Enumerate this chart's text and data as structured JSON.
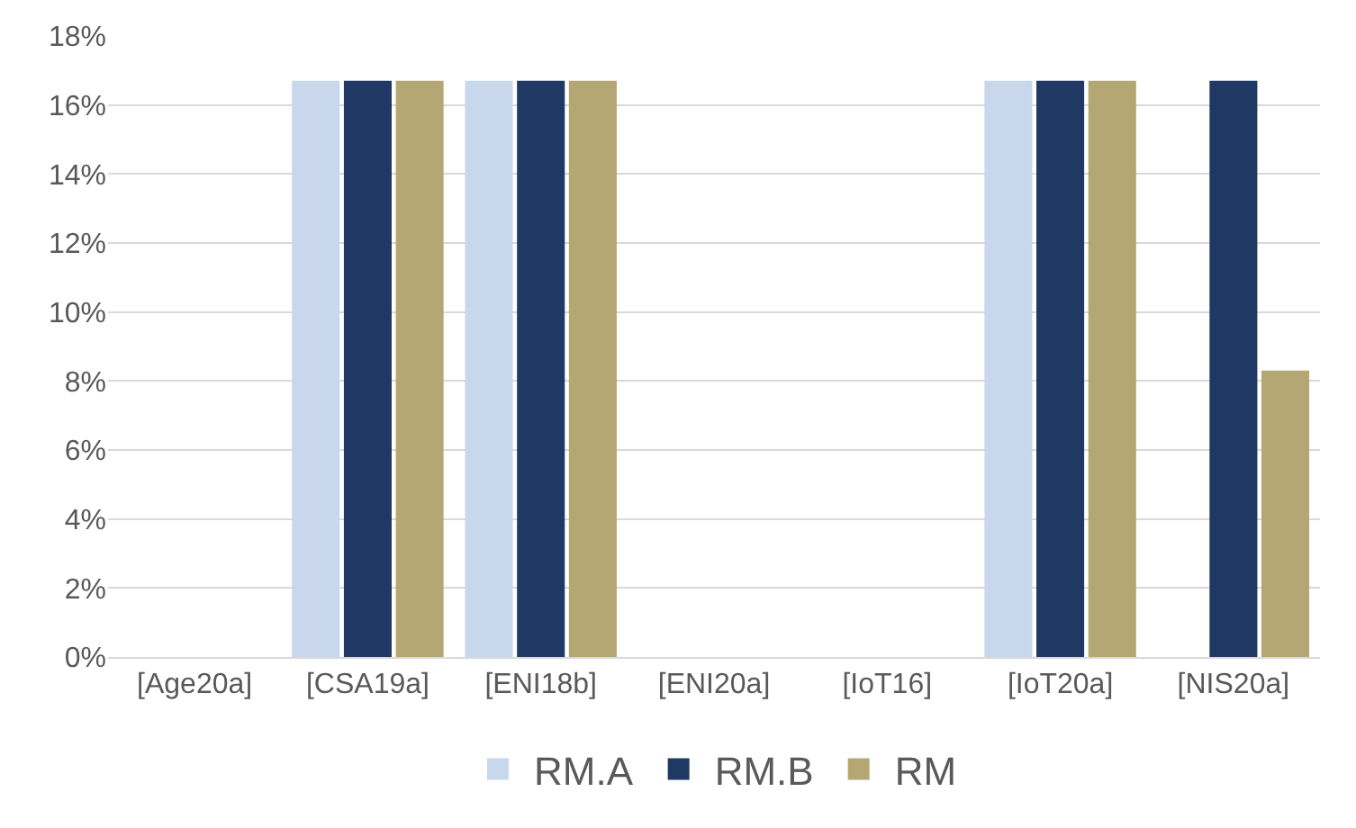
{
  "chart_data": {
    "type": "bar",
    "categories": [
      "[Age20a]",
      "[CSA19a]",
      "[ENI18b]",
      "[ENI20a]",
      "[IoT16]",
      "[IoT20a]",
      "[NIS20a]"
    ],
    "series": [
      {
        "name": "RM.A",
        "color": "#c9d7ec",
        "values": [
          0,
          16.7,
          16.7,
          0,
          0,
          16.7,
          0
        ]
      },
      {
        "name": "RM.B",
        "color": "#1f3864",
        "values": [
          0,
          16.7,
          16.7,
          0,
          0,
          16.7,
          16.7
        ]
      },
      {
        "name": "RM",
        "color": "#b5a774",
        "values": [
          0,
          16.7,
          16.7,
          0,
          0,
          16.7,
          8.3
        ]
      }
    ],
    "ylim": [
      0,
      18
    ],
    "yticks": [
      {
        "value": 0,
        "label": "0%"
      },
      {
        "value": 2,
        "label": "2%"
      },
      {
        "value": 4,
        "label": "4%"
      },
      {
        "value": 6,
        "label": "6%"
      },
      {
        "value": 8,
        "label": "8%"
      },
      {
        "value": 10,
        "label": "10%"
      },
      {
        "value": 12,
        "label": "12%"
      },
      {
        "value": 14,
        "label": "14%"
      },
      {
        "value": 16,
        "label": "16%"
      },
      {
        "value": 18,
        "label": "18%"
      }
    ],
    "grid": "y",
    "legend": "bottom"
  }
}
